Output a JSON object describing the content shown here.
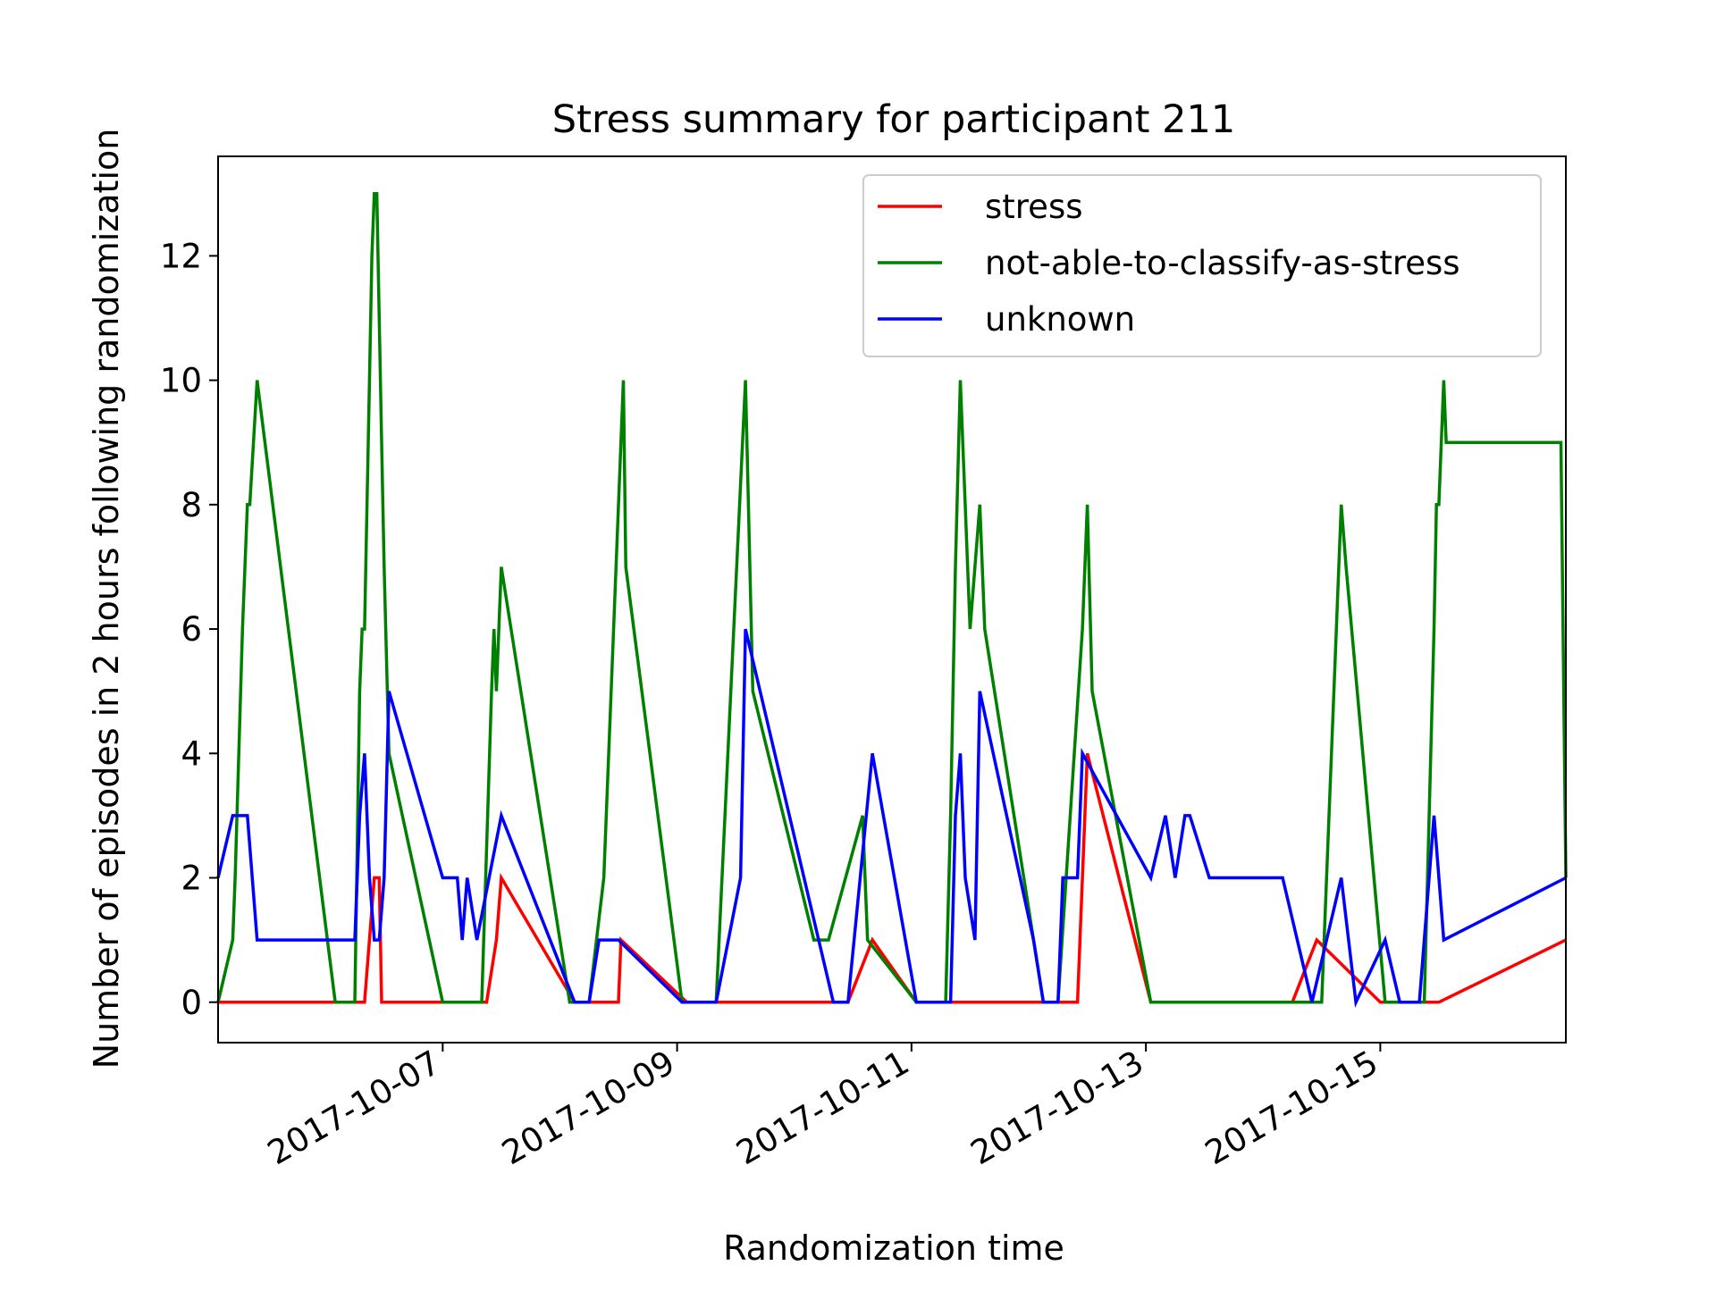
{
  "chart_data": {
    "type": "line",
    "title": "Stress summary for participant 211",
    "xlabel": "Randomization time",
    "ylabel": "Number of episodes in 2 hours following randomization",
    "x_type": "datetime",
    "xlim": [
      "2017-10-05T02:00",
      "2017-10-16T14:00"
    ],
    "ylim": [
      -0.65,
      13.6
    ],
    "x_ticks": [
      "2017-10-07",
      "2017-10-09",
      "2017-10-11",
      "2017-10-13",
      "2017-10-15"
    ],
    "y_ticks": [
      0,
      2,
      4,
      6,
      8,
      10,
      12
    ],
    "grid": false,
    "legend_position": "top-right",
    "series": [
      {
        "name": "stress",
        "color": "#ff0000",
        "points": [
          [
            "2017-10-05T02:00",
            0
          ],
          [
            "2017-10-06T08:00",
            0
          ],
          [
            "2017-10-06T10:00",
            2
          ],
          [
            "2017-10-06T11:00",
            2
          ],
          [
            "2017-10-06T11:30",
            0
          ],
          [
            "2017-10-07T00:00",
            0
          ],
          [
            "2017-10-07T09:00",
            0
          ],
          [
            "2017-10-07T11:00",
            1
          ],
          [
            "2017-10-07T12:00",
            2
          ],
          [
            "2017-10-08T03:00",
            0
          ],
          [
            "2017-10-08T12:00",
            0
          ],
          [
            "2017-10-08T12:30",
            1
          ],
          [
            "2017-10-09T02:00",
            0
          ],
          [
            "2017-10-10T07:00",
            0
          ],
          [
            "2017-10-10T11:00",
            0
          ],
          [
            "2017-10-10T16:00",
            1
          ],
          [
            "2017-10-11T01:00",
            0
          ],
          [
            "2017-10-12T10:00",
            0
          ],
          [
            "2017-10-12T12:00",
            4
          ],
          [
            "2017-10-13T01:00",
            0
          ],
          [
            "2017-10-14T06:00",
            0
          ],
          [
            "2017-10-14T11:00",
            1
          ],
          [
            "2017-10-15T00:00",
            0
          ],
          [
            "2017-10-15T12:00",
            0
          ],
          [
            "2017-10-16T14:00",
            1
          ]
        ]
      },
      {
        "name": "not-able-to-classify-as-stress",
        "color": "#008000",
        "points": [
          [
            "2017-10-05T02:00",
            0
          ],
          [
            "2017-10-05T05:00",
            1
          ],
          [
            "2017-10-05T05:30",
            2
          ],
          [
            "2017-10-05T07:00",
            6
          ],
          [
            "2017-10-05T08:00",
            8
          ],
          [
            "2017-10-05T08:30",
            8
          ],
          [
            "2017-10-05T10:00",
            10
          ],
          [
            "2017-10-06T02:00",
            0
          ],
          [
            "2017-10-06T06:00",
            0
          ],
          [
            "2017-10-06T07:00",
            5
          ],
          [
            "2017-10-06T07:30",
            6
          ],
          [
            "2017-10-06T08:00",
            6
          ],
          [
            "2017-10-06T09:00",
            10
          ],
          [
            "2017-10-06T09:30",
            12
          ],
          [
            "2017-10-06T10:00",
            13
          ],
          [
            "2017-10-06T10:30",
            13
          ],
          [
            "2017-10-06T11:00",
            11
          ],
          [
            "2017-10-06T11:30",
            9
          ],
          [
            "2017-10-06T12:00",
            7
          ],
          [
            "2017-10-06T13:00",
            4
          ],
          [
            "2017-10-07T00:00",
            0
          ],
          [
            "2017-10-07T08:00",
            0
          ],
          [
            "2017-10-07T10:00",
            5
          ],
          [
            "2017-10-07T10:30",
            6
          ],
          [
            "2017-10-07T11:00",
            5
          ],
          [
            "2017-10-07T12:00",
            7
          ],
          [
            "2017-10-08T02:00",
            0
          ],
          [
            "2017-10-08T06:00",
            0
          ],
          [
            "2017-10-08T09:00",
            2
          ],
          [
            "2017-10-08T13:00",
            10
          ],
          [
            "2017-10-08T13:30",
            7
          ],
          [
            "2017-10-09T01:00",
            0
          ],
          [
            "2017-10-09T08:00",
            0
          ],
          [
            "2017-10-09T14:00",
            10
          ],
          [
            "2017-10-09T15:30",
            5
          ],
          [
            "2017-10-10T04:00",
            1
          ],
          [
            "2017-10-10T07:00",
            1
          ],
          [
            "2017-10-10T14:00",
            3
          ],
          [
            "2017-10-10T14:30",
            2
          ],
          [
            "2017-10-10T15:00",
            1
          ],
          [
            "2017-10-11T01:00",
            0
          ],
          [
            "2017-10-11T07:00",
            0
          ],
          [
            "2017-10-11T08:00",
            3
          ],
          [
            "2017-10-11T09:00",
            7
          ],
          [
            "2017-10-11T10:00",
            10
          ],
          [
            "2017-10-11T12:00",
            6
          ],
          [
            "2017-10-11T14:00",
            8
          ],
          [
            "2017-10-11T15:00",
            6
          ],
          [
            "2017-10-12T03:00",
            0
          ],
          [
            "2017-10-12T06:00",
            0
          ],
          [
            "2017-10-12T11:00",
            6
          ],
          [
            "2017-10-12T12:00",
            8
          ],
          [
            "2017-10-12T13:00",
            5
          ],
          [
            "2017-10-13T01:00",
            0
          ],
          [
            "2017-10-14T06:00",
            0
          ],
          [
            "2017-10-14T12:00",
            0
          ],
          [
            "2017-10-14T16:00",
            8
          ],
          [
            "2017-10-14T17:00",
            7
          ],
          [
            "2017-10-15T01:00",
            0
          ],
          [
            "2017-10-15T09:00",
            0
          ],
          [
            "2017-10-15T11:00",
            6
          ],
          [
            "2017-10-15T11:30",
            8
          ],
          [
            "2017-10-15T12:00",
            8
          ],
          [
            "2017-10-15T13:00",
            10
          ],
          [
            "2017-10-15T13:30",
            9
          ],
          [
            "2017-10-16T13:00",
            9
          ],
          [
            "2017-10-16T14:00",
            2
          ]
        ]
      },
      {
        "name": "unknown",
        "color": "#0000ff",
        "points": [
          [
            "2017-10-05T02:00",
            2
          ],
          [
            "2017-10-05T05:00",
            3
          ],
          [
            "2017-10-05T08:00",
            3
          ],
          [
            "2017-10-05T10:00",
            1
          ],
          [
            "2017-10-06T06:00",
            1
          ],
          [
            "2017-10-06T07:00",
            3
          ],
          [
            "2017-10-06T08:00",
            4
          ],
          [
            "2017-10-06T09:00",
            2
          ],
          [
            "2017-10-06T10:00",
            1
          ],
          [
            "2017-10-06T11:00",
            1
          ],
          [
            "2017-10-06T12:00",
            2
          ],
          [
            "2017-10-06T13:00",
            5
          ],
          [
            "2017-10-07T00:00",
            2
          ],
          [
            "2017-10-07T03:00",
            2
          ],
          [
            "2017-10-07T04:00",
            1
          ],
          [
            "2017-10-07T05:00",
            2
          ],
          [
            "2017-10-07T07:00",
            1
          ],
          [
            "2017-10-07T12:00",
            3
          ],
          [
            "2017-10-08T03:00",
            0
          ],
          [
            "2017-10-08T06:00",
            0
          ],
          [
            "2017-10-08T08:00",
            1
          ],
          [
            "2017-10-08T12:00",
            1
          ],
          [
            "2017-10-09T01:00",
            0
          ],
          [
            "2017-10-09T08:00",
            0
          ],
          [
            "2017-10-09T13:00",
            2
          ],
          [
            "2017-10-09T14:00",
            6
          ],
          [
            "2017-10-10T08:00",
            0
          ],
          [
            "2017-10-10T11:00",
            0
          ],
          [
            "2017-10-10T16:00",
            4
          ],
          [
            "2017-10-11T01:00",
            0
          ],
          [
            "2017-10-11T08:00",
            0
          ],
          [
            "2017-10-11T09:00",
            3
          ],
          [
            "2017-10-11T10:00",
            4
          ],
          [
            "2017-10-11T11:00",
            2
          ],
          [
            "2017-10-11T13:00",
            1
          ],
          [
            "2017-10-11T14:00",
            5
          ],
          [
            "2017-10-12T01:00",
            1
          ],
          [
            "2017-10-12T03:00",
            0
          ],
          [
            "2017-10-12T06:00",
            0
          ],
          [
            "2017-10-12T07:00",
            2
          ],
          [
            "2017-10-12T10:00",
            2
          ],
          [
            "2017-10-12T11:00",
            4
          ],
          [
            "2017-10-13T01:00",
            2
          ],
          [
            "2017-10-13T04:00",
            3
          ],
          [
            "2017-10-13T06:00",
            2
          ],
          [
            "2017-10-13T08:00",
            3
          ],
          [
            "2017-10-13T09:00",
            3
          ],
          [
            "2017-10-13T13:00",
            2
          ],
          [
            "2017-10-14T04:00",
            2
          ],
          [
            "2017-10-14T07:00",
            1
          ],
          [
            "2017-10-14T10:00",
            0
          ],
          [
            "2017-10-14T13:00",
            1
          ],
          [
            "2017-10-14T16:00",
            2
          ],
          [
            "2017-10-14T19:00",
            0
          ],
          [
            "2017-10-15T01:00",
            1
          ],
          [
            "2017-10-15T04:00",
            0
          ],
          [
            "2017-10-15T08:00",
            0
          ],
          [
            "2017-10-15T11:00",
            3
          ],
          [
            "2017-10-15T13:00",
            1
          ],
          [
            "2017-10-16T14:00",
            2
          ]
        ]
      }
    ]
  }
}
